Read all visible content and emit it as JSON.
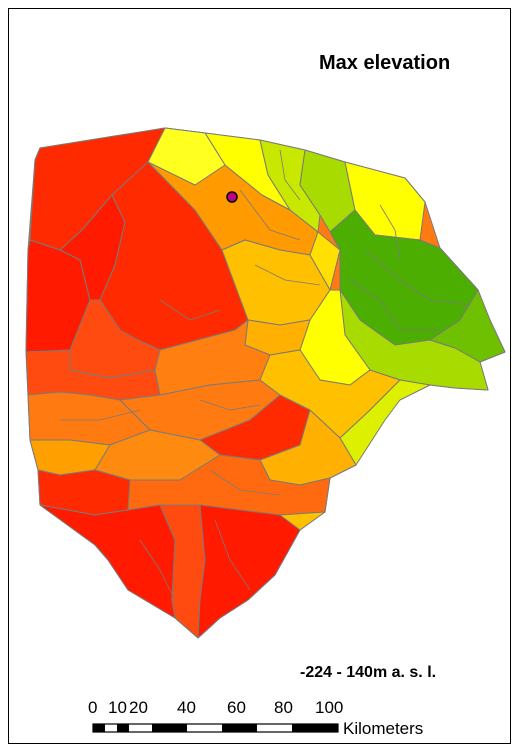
{
  "title": "Max elevation",
  "range_label": "-224 - 140m a. s. l.",
  "scale_bar": {
    "ticks": [
      "0",
      "10",
      "20",
      "40",
      "60",
      "80",
      "100"
    ],
    "unit": "Kilometers"
  },
  "colors": {
    "red": "#ff1a00",
    "red_orange": "#ff4a10",
    "orange": "#ff7a10",
    "orange_light": "#ffa000",
    "amber": "#ffc000",
    "yellow": "#ffff00",
    "yellow_green": "#ddf000",
    "light_green": "#a8dc00",
    "green": "#6ec000",
    "dark_green": "#4cae00",
    "boundary": "#7a7a7a",
    "marker": "#c0008a"
  }
}
